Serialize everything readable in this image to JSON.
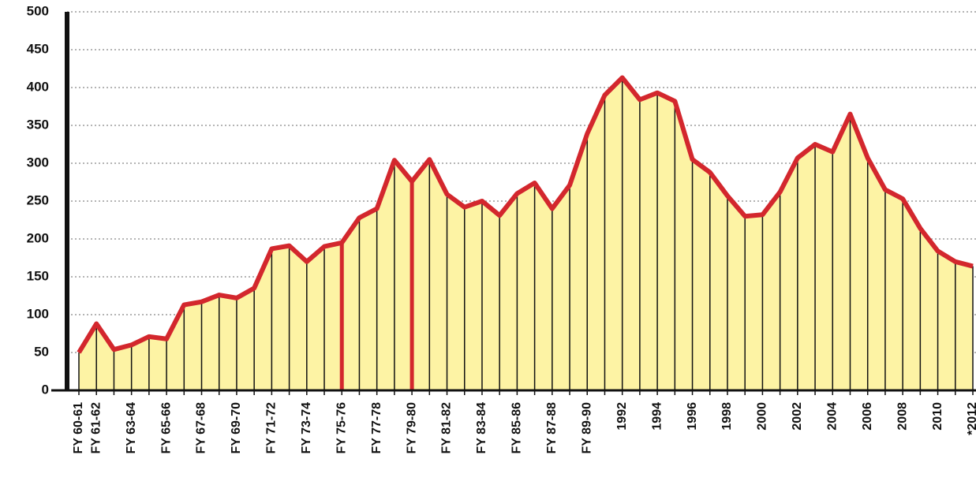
{
  "chart_data": {
    "type": "area",
    "categories": [
      "FY 60-61",
      "FY 61-62",
      null,
      "FY 63-64",
      null,
      "FY 65-66",
      null,
      "FY 67-68",
      null,
      "FY 69-70",
      null,
      "FY 71-72",
      null,
      "FY 73-74",
      null,
      "FY 75-76",
      null,
      "FY 77-78",
      null,
      "FY 79-80",
      null,
      "FY 81-82",
      null,
      "FY 83-84",
      null,
      "FY 85-86",
      null,
      "FY 87-88",
      null,
      "FY 89-90",
      null,
      "1992",
      null,
      "1994",
      null,
      "1996",
      null,
      "1998",
      null,
      "2000",
      null,
      "2002",
      null,
      "2004",
      null,
      "2006",
      null,
      "2008",
      null,
      "2010",
      null,
      "*2012"
    ],
    "values": [
      50,
      88,
      54,
      60,
      71,
      68,
      113,
      117,
      126,
      122,
      135,
      187,
      191,
      170,
      190,
      195,
      228,
      240,
      304,
      276,
      305,
      259,
      242,
      250,
      231,
      260,
      274,
      240,
      271,
      339,
      390,
      413,
      384,
      393,
      382,
      305,
      288,
      257,
      230,
      232,
      262,
      307,
      325,
      315,
      365,
      307,
      265,
      253,
      214,
      184,
      170,
      164
    ],
    "color": "#d3272d",
    "fill_color": "#fdf3a4",
    "highlight": [
      "FY 75-76",
      "FY 79-80"
    ],
    "ylim": [
      0,
      500
    ],
    "yticks": [
      0,
      50,
      100,
      150,
      200,
      250,
      300,
      350,
      400,
      450,
      500
    ],
    "grid": true
  }
}
